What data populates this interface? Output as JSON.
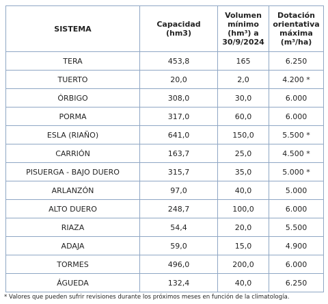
{
  "table": {
    "header": [
      "SISTEMA",
      "Capacidad (hm3)",
      "Volumen mínimo (hm³) a 30/9/2024",
      "Dotación orientativa máxima (m³/ha)"
    ],
    "rows": [
      [
        "TERA",
        "453,8",
        "165",
        "6.250"
      ],
      [
        "TUERTO",
        "20,0",
        "2,0",
        "4.200 *"
      ],
      [
        "ÓRBIGO",
        "308,0",
        "30,0",
        "6.000"
      ],
      [
        "PORMA",
        "317,0",
        "60,0",
        "6.000"
      ],
      [
        "ESLA (RIAÑO)",
        "641,0",
        "150,0",
        "5.500 *"
      ],
      [
        "CARRIÓN",
        "163,7",
        "25,0",
        "4.500 *"
      ],
      [
        "PISUERGA - BAJO DUERO",
        "315,7",
        "35,0",
        "5.000 *"
      ],
      [
        "ARLANZÓN",
        "97,0",
        "40,0",
        "5.000"
      ],
      [
        "ALTO DUERO",
        "248,7",
        "100,0",
        "6.000"
      ],
      [
        "RIAZA",
        "54,4",
        "20,0",
        "5.500"
      ],
      [
        "ADAJA",
        "59,0",
        "15,0",
        "4.900"
      ],
      [
        "TORMES",
        "496,0",
        "200,0",
        "6.000"
      ],
      [
        "ÁGUEDA",
        "132,4",
        "40,0",
        "6.250"
      ]
    ],
    "footnote": "* Valores que pueden sufrir revisiones durante los próximos meses en función de la climatología."
  }
}
